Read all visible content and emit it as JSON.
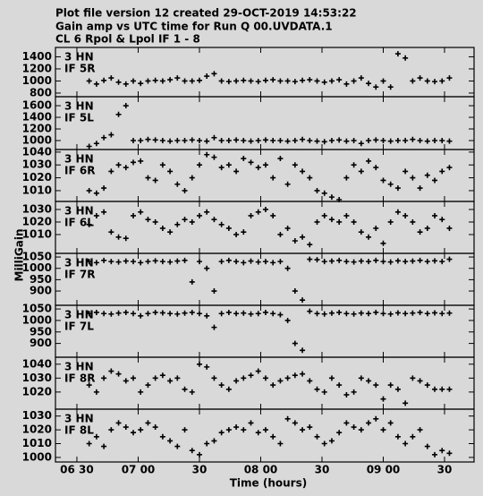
{
  "chart_data": {
    "type": "scatter",
    "title_lines": [
      "Plot file version 12  created 29-OCT-2019 14:53:22",
      "Gain amp vs UTC time for Run Q 00.UVDATA.1",
      "CL 6   Rpol & Lpol  IF 1 - 8"
    ],
    "ylabel": "MilliGain",
    "xlabel": "Time (hours)",
    "xlim": [
      6.325,
      9.741
    ],
    "xticks": [
      {
        "value": 6.5,
        "label": "06 30"
      },
      {
        "value": 7,
        "label": "07 00"
      },
      {
        "value": 7.5,
        "label": "30"
      },
      {
        "value": 8,
        "label": "08 00"
      },
      {
        "value": 8.5,
        "label": "30"
      },
      {
        "value": 9,
        "label": "09 00"
      },
      {
        "value": 9.5,
        "label": "30"
      }
    ],
    "x": [
      6.6,
      6.66,
      6.72,
      6.78,
      6.84,
      6.9,
      6.96,
      7.02,
      7.08,
      7.14,
      7.2,
      7.26,
      7.32,
      7.38,
      7.44,
      7.5,
      7.56,
      7.62,
      7.68,
      7.74,
      7.8,
      7.86,
      7.92,
      7.98,
      8.04,
      8.1,
      8.16,
      8.22,
      8.28,
      8.34,
      8.4,
      8.46,
      8.52,
      8.58,
      8.64,
      8.7,
      8.76,
      8.82,
      8.88,
      8.94,
      9.0,
      9.06,
      9.12,
      9.18,
      9.24,
      9.3,
      9.36,
      9.42,
      9.48,
      9.54
    ],
    "color": "#000000",
    "panels": [
      {
        "antenna": "3 HN",
        "if": "IF 5R",
        "ylim": [
          740,
          1555
        ],
        "yticks": [
          800,
          1000,
          1200,
          1400
        ],
        "values": [
          1000,
          950,
          1010,
          1050,
          980,
          950,
          1000,
          960,
          1000,
          1010,
          1000,
          1020,
          1050,
          1000,
          1000,
          1010,
          1080,
          1120,
          1000,
          990,
          1000,
          1010,
          1000,
          990,
          1010,
          1020,
          1000,
          1000,
          990,
          1010,
          1020,
          1000,
          980,
          1000,
          1020,
          950,
          1000,
          1050,
          960,
          900,
          1000,
          900,
          1450,
          1380,
          1000,
          1050,
          1000,
          990,
          1000,
          1050
        ]
      },
      {
        "antenna": "3 HN",
        "if": "IF 5L",
        "ylim": [
          846,
          1755
        ],
        "yticks": [
          1000,
          1200,
          1400,
          1600
        ],
        "values": [
          900,
          950,
          1050,
          1100,
          1450,
          1600,
          1000,
          1000,
          1020,
          1010,
          1000,
          990,
          1000,
          1000,
          1010,
          1000,
          990,
          1050,
          1000,
          1000,
          1010,
          1000,
          990,
          1000,
          1010,
          1000,
          1000,
          990,
          1000,
          1020,
          1000,
          990,
          980,
          1000,
          1010,
          990,
          1000,
          950,
          1000,
          1010,
          1000,
          990,
          1000,
          1000,
          1020,
          1000,
          990,
          1000,
          1000,
          990
        ]
      },
      {
        "antenna": "3 HN",
        "if": "IF 6R",
        "ylim": [
          1001.6,
          1042
        ],
        "yticks": [
          1010,
          1020,
          1030,
          1040
        ],
        "values": [
          1010,
          1008,
          1012,
          1025,
          1030,
          1028,
          1032,
          1033,
          1020,
          1018,
          1030,
          1025,
          1015,
          1010,
          1020,
          1030,
          1038,
          1036,
          1028,
          1030,
          1025,
          1035,
          1032,
          1028,
          1030,
          1020,
          1035,
          1015,
          1030,
          1025,
          1020,
          1010,
          1008,
          1005,
          1003,
          1020,
          1030,
          1025,
          1033,
          1028,
          1018,
          1015,
          1012,
          1025,
          1020,
          1012,
          1022,
          1018,
          1025,
          1028
        ]
      },
      {
        "antenna": "3 HN",
        "if": "IF 6L",
        "ylim": [
          995,
          1036.4
        ],
        "yticks": [
          1010,
          1020,
          1030
        ],
        "values": [
          1018,
          1025,
          1028,
          1012,
          1008,
          1007,
          1025,
          1028,
          1022,
          1020,
          1015,
          1012,
          1018,
          1022,
          1020,
          1025,
          1028,
          1022,
          1018,
          1015,
          1010,
          1012,
          1025,
          1028,
          1030,
          1025,
          1010,
          1015,
          1005,
          1008,
          1002,
          1020,
          1025,
          1022,
          1020,
          1025,
          1020,
          1012,
          1008,
          1015,
          1003,
          1020,
          1028,
          1025,
          1020,
          1012,
          1015,
          1025,
          1022,
          1015
        ]
      },
      {
        "antenna": "3 HN",
        "if": "IF 7R",
        "ylim": [
          837,
          1066
        ],
        "yticks": [
          900,
          950,
          1000,
          1050
        ],
        "values": [
          1030,
          1025,
          1035,
          1030,
          1028,
          1032,
          1030,
          1025,
          1030,
          1033,
          1030,
          1028,
          1032,
          1035,
          940,
          1030,
          1000,
          900,
          1030,
          1035,
          1030,
          1025,
          1032,
          1028,
          1030,
          1025,
          1030,
          1000,
          900,
          860,
          1040,
          1038,
          1030,
          1032,
          1035,
          1030,
          1028,
          1032,
          1030,
          1035,
          1030,
          1028,
          1033,
          1030,
          1032,
          1035,
          1030,
          1033,
          1030,
          1040
        ]
      },
      {
        "antenna": "3 HN",
        "if": "IF 7L",
        "ylim": [
          840,
          1066
        ],
        "yticks": [
          900,
          950,
          1000,
          1050
        ],
        "values": [
          1030,
          1035,
          1030,
          1028,
          1032,
          1035,
          1030,
          1020,
          1030,
          1035,
          1033,
          1030,
          1028,
          1032,
          1035,
          1030,
          1020,
          970,
          1030,
          1035,
          1030,
          1032,
          1028,
          1030,
          1035,
          1030,
          1025,
          1000,
          900,
          870,
          1040,
          1030,
          1028,
          1032,
          1035,
          1030,
          1028,
          1032,
          1030,
          1035,
          1030,
          1028,
          1033,
          1030,
          1032,
          1035,
          1030,
          1033,
          1030,
          1032
        ]
      },
      {
        "antenna": "3 HN",
        "if": "IF 8R",
        "ylim": [
          1007.7,
          1045
        ],
        "yticks": [
          1020,
          1030,
          1040
        ],
        "values": [
          1025,
          1020,
          1030,
          1035,
          1033,
          1028,
          1030,
          1020,
          1025,
          1030,
          1032,
          1028,
          1030,
          1022,
          1020,
          1040,
          1038,
          1030,
          1025,
          1022,
          1028,
          1030,
          1032,
          1035,
          1030,
          1025,
          1028,
          1030,
          1032,
          1033,
          1028,
          1022,
          1020,
          1030,
          1025,
          1018,
          1020,
          1030,
          1028,
          1025,
          1015,
          1025,
          1022,
          1012,
          1030,
          1028,
          1025,
          1022,
          1022,
          1022
        ]
      },
      {
        "antenna": "3 HN",
        "if": "IF 8L",
        "ylim": [
          996.7,
          1035
        ],
        "yticks": [
          1000,
          1010,
          1020,
          1030
        ],
        "values": [
          1010,
          1015,
          1008,
          1020,
          1025,
          1022,
          1018,
          1020,
          1025,
          1022,
          1015,
          1012,
          1008,
          1020,
          1005,
          1002,
          1010,
          1012,
          1018,
          1020,
          1022,
          1020,
          1025,
          1018,
          1020,
          1015,
          1010,
          1028,
          1025,
          1020,
          1022,
          1015,
          1010,
          1012,
          1018,
          1025,
          1022,
          1020,
          1025,
          1028,
          1020,
          1025,
          1015,
          1010,
          1015,
          1020,
          1008,
          1002,
          1005,
          1003
        ]
      }
    ]
  }
}
